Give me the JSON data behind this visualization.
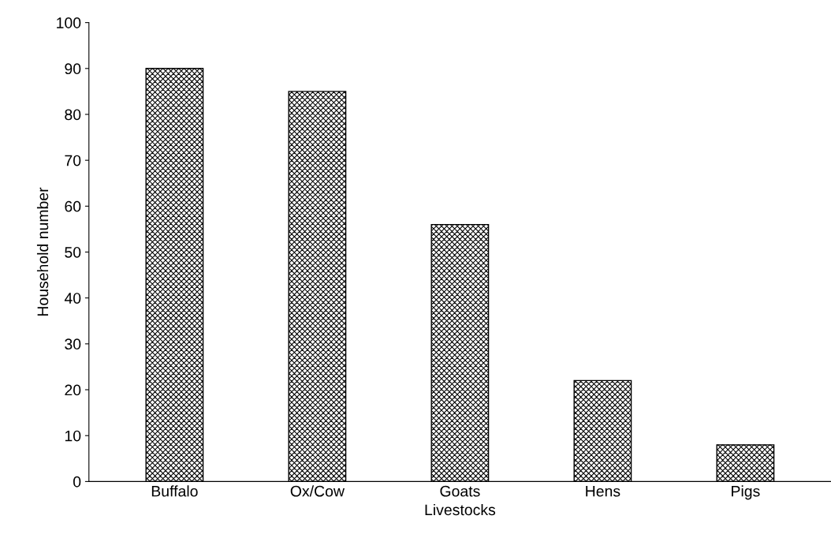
{
  "chart_data": {
    "type": "bar",
    "xlabel": "Livestocks",
    "ylabel": "Household number",
    "categories": [
      "Buffalo",
      "Ox/Cow",
      "Goats",
      "Hens",
      "Pigs"
    ],
    "values": [
      90,
      85,
      56,
      22,
      8
    ],
    "color": "#000000",
    "ylim": [
      0,
      100
    ],
    "yticks": [
      0,
      10,
      20,
      30,
      40,
      50,
      60,
      70,
      80,
      90,
      100
    ],
    "grid": false,
    "legend": false
  }
}
